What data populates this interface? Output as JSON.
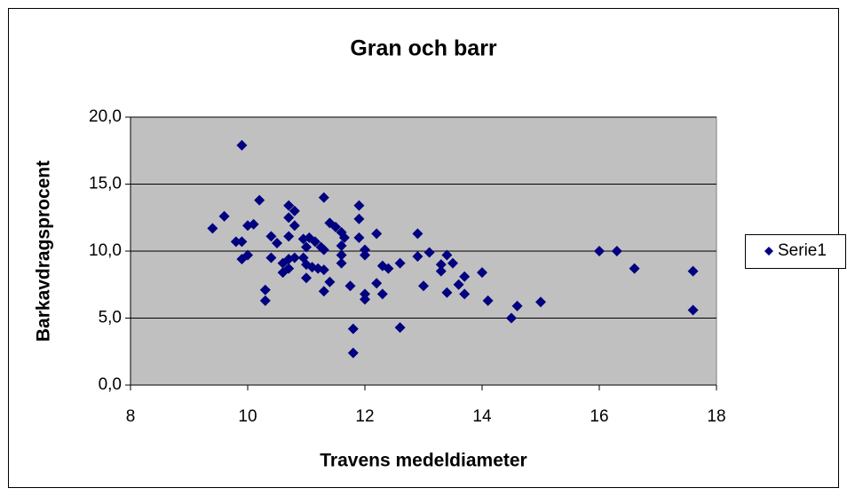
{
  "chart_data": {
    "type": "scatter",
    "title": "Gran och barr",
    "xlabel": "Travens medeldiameter",
    "ylabel": "Barkavdragsprocent",
    "series": [
      {
        "name": "Serie1",
        "color": "#000080",
        "x": [
          9.4,
          9.6,
          9.8,
          9.9,
          9.9,
          9.9,
          10.0,
          10.0,
          10.1,
          10.2,
          10.3,
          10.3,
          10.4,
          10.4,
          10.5,
          10.6,
          10.6,
          10.7,
          10.7,
          10.7,
          10.7,
          10.7,
          10.8,
          10.8,
          10.8,
          10.95,
          11.0,
          10.95,
          11.0,
          11.0,
          11.05,
          11.1,
          11.15,
          11.2,
          11.25,
          11.3,
          11.3,
          11.3,
          11.3,
          11.4,
          11.4,
          11.5,
          11.6,
          11.6,
          11.6,
          11.6,
          11.65,
          11.75,
          11.8,
          11.8,
          11.9,
          11.9,
          11.9,
          12.0,
          12.0,
          12.0,
          12.0,
          12.2,
          12.2,
          12.3,
          12.3,
          12.4,
          12.6,
          12.6,
          12.9,
          12.9,
          13.0,
          13.1,
          13.3,
          13.3,
          13.4,
          13.4,
          13.5,
          13.6,
          13.7,
          13.7,
          14.0,
          14.1,
          14.5,
          14.6,
          15.0,
          16.0,
          16.3,
          16.6,
          17.6,
          17.6
        ],
        "values": [
          11.7,
          12.6,
          10.7,
          17.9,
          10.7,
          9.4,
          11.9,
          9.7,
          12.0,
          13.8,
          7.1,
          6.3,
          11.1,
          9.5,
          10.6,
          9.1,
          8.4,
          8.7,
          9.4,
          11.1,
          12.5,
          13.4,
          13.0,
          11.9,
          9.5,
          9.5,
          9.0,
          10.9,
          8.0,
          10.3,
          11.0,
          8.8,
          10.7,
          8.7,
          10.3,
          8.6,
          10.1,
          14.0,
          7.0,
          7.7,
          12.1,
          11.8,
          11.4,
          10.4,
          9.1,
          9.7,
          11.0,
          7.4,
          4.2,
          2.4,
          13.4,
          12.4,
          11.0,
          10.1,
          9.7,
          6.8,
          6.4,
          11.3,
          7.6,
          8.9,
          6.8,
          8.7,
          9.1,
          4.3,
          11.3,
          9.6,
          7.4,
          9.9,
          9.0,
          8.5,
          9.7,
          6.9,
          9.1,
          7.5,
          8.1,
          6.8,
          8.4,
          6.3,
          5.0,
          5.9,
          6.2,
          10.0,
          10.0,
          8.7,
          8.5,
          5.6
        ]
      }
    ],
    "xlim": [
      8,
      18
    ],
    "xticks": [
      8,
      10,
      12,
      14,
      16,
      18
    ],
    "ylim": [
      0,
      20
    ],
    "yticks": [
      {
        "value": 0,
        "label": "0,0"
      },
      {
        "value": 5,
        "label": "5,0"
      },
      {
        "value": 10,
        "label": "10,0"
      },
      {
        "value": 15,
        "label": "15,0"
      },
      {
        "value": 20,
        "label": "20,0"
      }
    ],
    "grid": true,
    "legend": "right"
  }
}
